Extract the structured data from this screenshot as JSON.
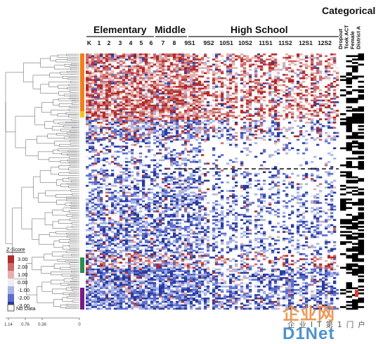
{
  "chart_data": {
    "type": "heatmap",
    "title": "",
    "group_headers": [
      {
        "label": "Elementary",
        "span": [
          0,
          6
        ]
      },
      {
        "label": "Middle",
        "span": [
          7,
          8
        ]
      },
      {
        "label": "High School",
        "span": [
          9,
          18
        ]
      }
    ],
    "grade_columns": [
      "K",
      "1",
      "2",
      "3",
      "4",
      "5",
      "6",
      "7",
      "8",
      "9S1",
      "9S2",
      "10S1",
      "10S2",
      "11S1",
      "11S2",
      "12S1",
      "12S2"
    ],
    "categorical": {
      "title": "Categorical",
      "columns": [
        "Dropout",
        "Took ACT",
        "Female",
        "District A"
      ]
    },
    "legend": {
      "title": "Z-Score",
      "levels": [
        "3.00",
        "2.00",
        "1.00",
        "0.00",
        "-1.00",
        "-2.00",
        "-3.00"
      ],
      "level_colors": [
        "#b22b2b",
        "#cd6a6a",
        "#e3b0b0",
        "#eeeeee",
        "#a9b4e4",
        "#5d6dcc",
        "#283a9c"
      ],
      "no_data_label": "No Data"
    },
    "dendrogram_axis": {
      "ticks": [
        "1.14",
        "0.76",
        "0.38",
        "0"
      ]
    },
    "cluster_colors": [
      "#f07f1e",
      "#f5c51b",
      "#2e8b4f",
      "#7a1a86"
    ],
    "row_count": 150
  },
  "watermark": {
    "brand_a": "企业网",
    "brand_b": "D1Net",
    "subtitle": "企业IT第1门户"
  }
}
